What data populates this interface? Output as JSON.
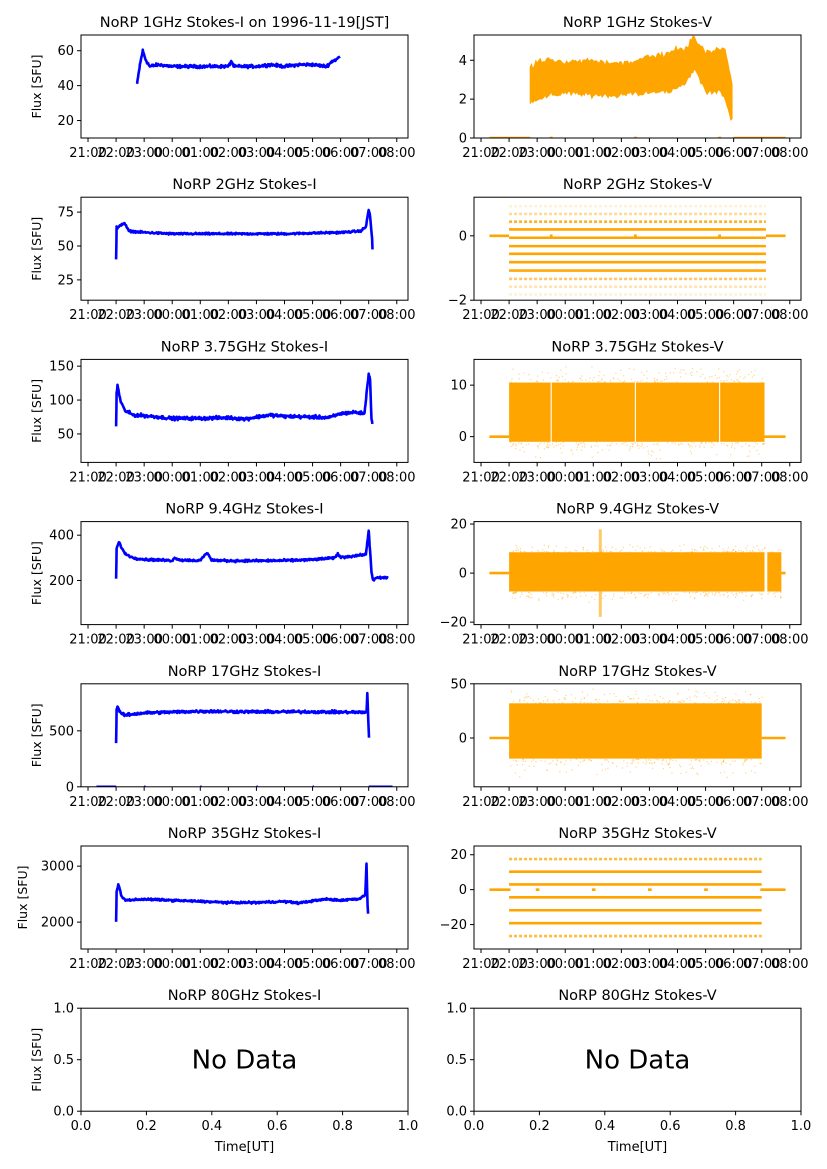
{
  "figure": {
    "time_tick_labels": [
      "21:00",
      "22:00",
      "23:00",
      "00:00",
      "01:00",
      "02:00",
      "03:00",
      "04:00",
      "05:00",
      "06:00",
      "07:00",
      "08:00"
    ],
    "colors": {
      "stokes_i": "#0000ff",
      "stokes_v": "#ffa500",
      "axis": "#000000"
    }
  },
  "chart_data": [
    {
      "type": "scatter",
      "id": "1ghz-i",
      "title": "NoRP 1GHz Stokes-I on 1996-11-19[JST]",
      "ylabel": "Flux [SFU]",
      "xlabel": "",
      "ylim": [
        10,
        69
      ],
      "yticks": [
        20,
        40,
        60
      ],
      "xlim_hours": [
        20.75,
        32.4
      ],
      "color": "#0000ff",
      "series": [
        {
          "name": "Stokes-I",
          "kind": "trace",
          "x_hours": [
            22.75,
            22.85,
            22.95,
            23.05,
            23.2,
            23.5,
            24.0,
            25.0,
            26.0,
            26.1,
            26.2,
            27.0,
            27.5,
            28.0,
            28.5,
            29.0,
            29.5,
            29.7,
            29.85,
            30.0
          ],
          "y": [
            41,
            52,
            60,
            55,
            51,
            52,
            51,
            51,
            51,
            54,
            51,
            51,
            52,
            51,
            52,
            52,
            51,
            54,
            55,
            57
          ],
          "noise": 1.2
        }
      ]
    },
    {
      "type": "scatter",
      "id": "1ghz-v",
      "title": "NoRP 1GHz Stokes-V",
      "ylabel": "",
      "xlabel": "",
      "ylim": [
        0,
        5.3
      ],
      "yticks": [
        0,
        2,
        4
      ],
      "xlim_hours": [
        20.75,
        32.4
      ],
      "color": "#ffa500",
      "series": [
        {
          "name": "Stokes-V",
          "kind": "band",
          "x_hours": [
            22.75,
            23.0,
            23.5,
            24.0,
            25.0,
            26.0,
            26.5,
            27.0,
            27.5,
            28.0,
            28.3,
            28.6,
            29.0,
            29.5,
            29.7,
            29.9,
            30.0
          ],
          "y_low": [
            1.8,
            2.0,
            2.2,
            2.3,
            2.2,
            2.2,
            2.3,
            2.3,
            2.4,
            2.5,
            2.8,
            3.6,
            2.4,
            2.4,
            2.0,
            1.0,
            0.8
          ],
          "y_high": [
            3.6,
            4.0,
            4.0,
            3.9,
            4.0,
            3.8,
            4.0,
            4.2,
            4.3,
            4.6,
            4.6,
            5.2,
            4.4,
            4.5,
            4.7,
            3.2,
            2.3
          ]
        },
        {
          "name": "zero-baseline",
          "kind": "segments",
          "x_ranges": [
            [
              21.3,
              22.75
            ],
            [
              23.45,
              23.55
            ],
            [
              26.45,
              26.55
            ],
            [
              29.45,
              29.55
            ],
            [
              30.0,
              31.85
            ]
          ],
          "y": 0
        }
      ]
    },
    {
      "type": "scatter",
      "id": "2ghz-i",
      "title": "NoRP 2GHz Stokes-I",
      "ylabel": "Flux [SFU]",
      "xlabel": "",
      "ylim": [
        10,
        86
      ],
      "yticks": [
        25,
        50,
        75
      ],
      "xlim_hours": [
        20.75,
        32.4
      ],
      "color": "#0000ff",
      "series": [
        {
          "name": "Stokes-I",
          "kind": "trace",
          "x_hours": [
            22.0,
            22.02,
            22.05,
            22.2,
            22.3,
            22.45,
            23.0,
            24.0,
            26.0,
            28.0,
            30.0,
            30.7,
            30.9,
            31.0,
            31.05,
            31.12,
            31.15
          ],
          "y": [
            40,
            64,
            63,
            66,
            67,
            61,
            60,
            59,
            59,
            59,
            60,
            61,
            64,
            77,
            72,
            55,
            40
          ],
          "noise": 1.0
        }
      ]
    },
    {
      "type": "scatter",
      "id": "2ghz-v",
      "title": "NoRP 2GHz Stokes-V",
      "ylabel": "",
      "xlabel": "",
      "ylim": [
        -2,
        1.2
      ],
      "yticks": [
        -2,
        0
      ],
      "xlim_hours": [
        20.75,
        32.4
      ],
      "color": "#ffa500",
      "series": [
        {
          "name": "Stokes-V",
          "kind": "levels",
          "x_range": [
            22.0,
            31.15
          ],
          "levels": [
            0.92,
            0.68,
            0.44,
            0.2,
            -0.06,
            -0.32,
            -0.56,
            -0.82,
            -1.08,
            -1.34,
            -1.58,
            -1.82
          ],
          "level_weights": [
            0.15,
            0.4,
            0.85,
            1,
            1,
            1,
            1,
            1,
            0.95,
            0.6,
            0.3,
            0.15
          ]
        },
        {
          "name": "zero-baseline",
          "kind": "segments",
          "x_ranges": [
            [
              21.3,
              22.0
            ],
            [
              23.45,
              23.55
            ],
            [
              26.45,
              26.55
            ],
            [
              29.45,
              29.55
            ],
            [
              31.15,
              31.85
            ]
          ],
          "y": 0
        }
      ]
    },
    {
      "type": "scatter",
      "id": "375ghz-i",
      "title": "NoRP 3.75GHz Stokes-I",
      "ylabel": "Flux [SFU]",
      "xlabel": "",
      "ylim": [
        8,
        160
      ],
      "yticks": [
        50,
        100,
        150
      ],
      "xlim_hours": [
        20.75,
        32.4
      ],
      "color": "#0000ff",
      "series": [
        {
          "name": "Stokes-I",
          "kind": "trace",
          "x_hours": [
            22.0,
            22.02,
            22.05,
            22.15,
            22.3,
            22.6,
            23.0,
            24.0,
            25.0,
            26.0,
            26.6,
            27.0,
            27.5,
            28.0,
            29.0,
            29.6,
            30.0,
            30.5,
            30.85,
            31.0,
            31.05,
            31.1,
            31.15
          ],
          "y": [
            62,
            110,
            122,
            100,
            85,
            78,
            77,
            73,
            73,
            74,
            72,
            75,
            78,
            76,
            75,
            74,
            80,
            82,
            80,
            140,
            130,
            70,
            63
          ],
          "noise": 3.5
        }
      ]
    },
    {
      "type": "scatter",
      "id": "375ghz-v",
      "title": "NoRP 3.75GHz Stokes-V",
      "ylabel": "",
      "xlabel": "",
      "ylim": [
        -5,
        15
      ],
      "yticks": [
        0,
        10
      ],
      "xlim_hours": [
        20.75,
        32.4
      ],
      "color": "#ffa500",
      "series": [
        {
          "name": "Stokes-V",
          "kind": "band-blocks",
          "blocks": [
            [
              22.0,
              23.48
            ],
            [
              23.52,
              26.48
            ],
            [
              26.52,
              29.48
            ],
            [
              29.52,
              31.1
            ]
          ],
          "y_low": -1.0,
          "y_high": 10.5,
          "scatter_low": -4.5,
          "scatter_high": 14
        },
        {
          "name": "zero-baseline",
          "kind": "segments",
          "x_ranges": [
            [
              21.3,
              22.0
            ],
            [
              31.1,
              31.85
            ]
          ],
          "y": 0
        }
      ]
    },
    {
      "type": "scatter",
      "id": "94ghz-i",
      "title": "NoRP 9.4GHz Stokes-I",
      "ylabel": "Flux [SFU]",
      "xlabel": "",
      "ylim": [
        5,
        460
      ],
      "yticks": [
        200,
        400
      ],
      "xlim_hours": [
        20.75,
        32.4
      ],
      "color": "#0000ff",
      "series": [
        {
          "name": "Stokes-I",
          "kind": "trace",
          "x_hours": [
            22.0,
            22.02,
            22.1,
            22.3,
            22.6,
            23.0,
            24.0,
            24.1,
            24.3,
            25.0,
            25.2,
            25.3,
            25.4,
            26.0,
            27.0,
            28.0,
            29.0,
            29.8,
            29.9,
            30.0,
            30.6,
            30.9,
            31.0,
            31.05,
            31.1,
            31.15,
            31.3,
            31.7
          ],
          "y": [
            205,
            340,
            370,
            320,
            300,
            293,
            288,
            300,
            290,
            288,
            318,
            315,
            290,
            287,
            287,
            288,
            292,
            300,
            318,
            302,
            310,
            315,
            420,
            330,
            240,
            200,
            212,
            212
          ],
          "noise": 7
        }
      ]
    },
    {
      "type": "scatter",
      "id": "94ghz-v",
      "title": "NoRP 9.4GHz Stokes-V",
      "ylabel": "",
      "xlabel": "",
      "ylim": [
        -21,
        21
      ],
      "yticks": [
        -20,
        0,
        20
      ],
      "xlim_hours": [
        20.75,
        32.4
      ],
      "color": "#ffa500",
      "series": [
        {
          "name": "Stokes-V",
          "kind": "band-blocks",
          "blocks": [
            [
              22.0,
              31.1
            ],
            [
              31.2,
              31.7
            ]
          ],
          "y_low": -7.5,
          "y_high": 8.5,
          "scatter_low": -12,
          "scatter_high": 12,
          "spike_hours": 25.25
        },
        {
          "name": "zero-baseline",
          "kind": "segments",
          "x_ranges": [
            [
              21.3,
              22.0
            ],
            [
              31.7,
              31.85
            ]
          ],
          "y": 0
        }
      ]
    },
    {
      "type": "scatter",
      "id": "17ghz-i",
      "title": "NoRP 17GHz Stokes-I",
      "ylabel": "Flux [SFU]",
      "xlabel": "",
      "ylim": [
        0,
        920
      ],
      "yticks": [
        0,
        500
      ],
      "xlim_hours": [
        20.75,
        32.4
      ],
      "color": "#0000ff",
      "series": [
        {
          "name": "Stokes-I",
          "kind": "trace",
          "x_hours": [
            22.0,
            22.02,
            22.05,
            22.15,
            22.3,
            23.0,
            25.0,
            27.0,
            29.0,
            30.8,
            30.92,
            30.95,
            31.0,
            31.02
          ],
          "y": [
            400,
            690,
            720,
            660,
            640,
            660,
            675,
            670,
            670,
            665,
            670,
            830,
            500,
            400
          ],
          "noise": 18
        },
        {
          "name": "zero-baseline",
          "kind": "segments",
          "x_ranges": [
            [
              21.3,
              22.0
            ],
            [
              23.0,
              23.05
            ],
            [
              25.0,
              25.05
            ],
            [
              27.0,
              27.05
            ],
            [
              29.0,
              29.05
            ],
            [
              31.0,
              31.85
            ]
          ],
          "y": 0
        }
      ]
    },
    {
      "type": "scatter",
      "id": "17ghz-v",
      "title": "NoRP 17GHz Stokes-V",
      "ylabel": "",
      "xlabel": "",
      "ylim": [
        -45,
        50
      ],
      "yticks": [
        0,
        50
      ],
      "xlim_hours": [
        20.75,
        32.4
      ],
      "color": "#ffa500",
      "series": [
        {
          "name": "Stokes-V",
          "kind": "band-blocks",
          "blocks": [
            [
              22.0,
              31.0
            ]
          ],
          "y_low": -19,
          "y_high": 32,
          "scatter_low": -38,
          "scatter_high": 48
        },
        {
          "name": "zero-baseline",
          "kind": "segments",
          "x_ranges": [
            [
              21.3,
              22.0
            ],
            [
              31.0,
              31.85
            ]
          ],
          "y": 0
        }
      ]
    },
    {
      "type": "scatter",
      "id": "35ghz-i",
      "title": "NoRP 35GHz Stokes-I",
      "ylabel": "Flux [SFU]",
      "xlabel": "",
      "ylim": [
        1520,
        3360
      ],
      "yticks": [
        2000,
        3000
      ],
      "xlim_hours": [
        20.75,
        32.4
      ],
      "color": "#0000ff",
      "series": [
        {
          "name": "Stokes-I",
          "kind": "trace",
          "x_hours": [
            22.0,
            22.02,
            22.08,
            22.2,
            22.35,
            23.0,
            25.0,
            26.0,
            27.0,
            28.0,
            28.5,
            29.0,
            29.5,
            30.0,
            30.7,
            30.88,
            30.92,
            30.96,
            31.0
          ],
          "y": [
            2000,
            2550,
            2680,
            2450,
            2390,
            2410,
            2370,
            2350,
            2350,
            2370,
            2340,
            2380,
            2410,
            2390,
            2420,
            2500,
            3050,
            2300,
            2020
          ],
          "noise": 25
        }
      ]
    },
    {
      "type": "scatter",
      "id": "35ghz-v",
      "title": "NoRP 35GHz Stokes-V",
      "ylabel": "",
      "xlabel": "",
      "ylim": [
        -34,
        25
      ],
      "yticks": [
        -20,
        0,
        20
      ],
      "xlim_hours": [
        20.75,
        32.4
      ],
      "color": "#ffa500",
      "series": [
        {
          "name": "Stokes-V",
          "kind": "levels",
          "x_range": [
            22.0,
            31.0
          ],
          "levels": [
            17.5,
            10.3,
            3.0,
            -4.4,
            -11.8,
            -19.2,
            -26.6
          ],
          "level_weights": [
            0.75,
            1,
            1,
            1,
            1,
            1,
            0.75
          ]
        },
        {
          "name": "zero-baseline",
          "kind": "segments",
          "x_ranges": [
            [
              21.3,
              22.05
            ],
            [
              22.95,
              23.08
            ],
            [
              24.95,
              25.08
            ],
            [
              26.95,
              27.08
            ],
            [
              28.95,
              29.08
            ],
            [
              30.95,
              31.85
            ]
          ],
          "y": 0
        }
      ]
    },
    {
      "type": "scatter",
      "id": "80ghz-i",
      "title": "NoRP 80GHz Stokes-I",
      "ylabel": "Flux [SFU]",
      "xlabel": "Time[UT]",
      "xlim": [
        0,
        1
      ],
      "ylim": [
        0,
        1
      ],
      "xticks": [
        "0.0",
        "0.2",
        "0.4",
        "0.6",
        "0.8",
        "1.0"
      ],
      "yticks": [
        "0.0",
        "0.5",
        "1.0"
      ],
      "annotation": "No Data",
      "series": []
    },
    {
      "type": "scatter",
      "id": "80ghz-v",
      "title": "NoRP 80GHz Stokes-V",
      "ylabel": "",
      "xlabel": "Time[UT]",
      "xlim": [
        0,
        1
      ],
      "ylim": [
        0,
        1
      ],
      "xticks": [
        "0.0",
        "0.2",
        "0.4",
        "0.6",
        "0.8",
        "1.0"
      ],
      "yticks": [
        "0.0",
        "0.5",
        "1.0"
      ],
      "annotation": "No Data",
      "series": []
    }
  ]
}
